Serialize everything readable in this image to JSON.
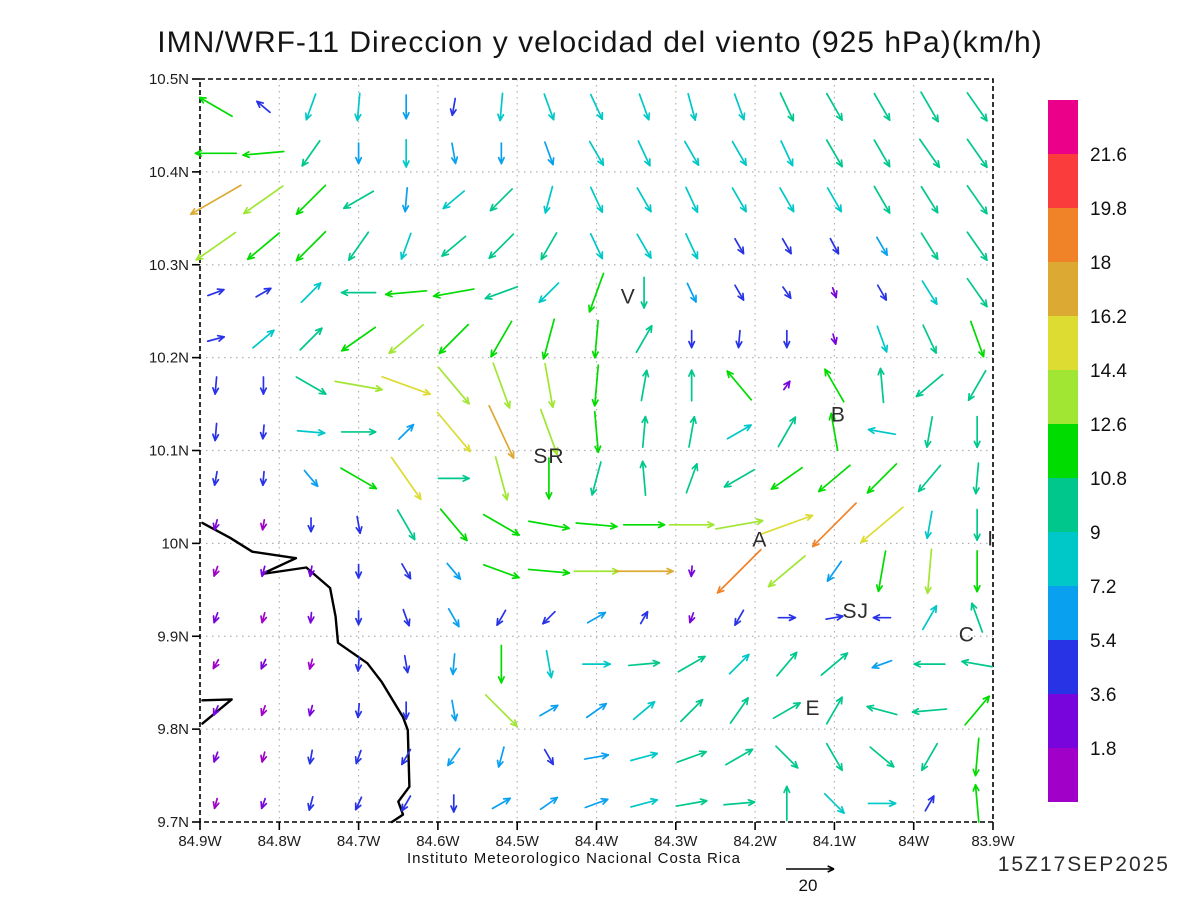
{
  "title": "IMN/WRF-11 Direccion y velocidad del viento (925 hPa)(km/h)",
  "footer": {
    "institute": "Instituto Meteorologico Nacional Costa Rica",
    "timestamp": "15Z17SEP2025",
    "reference_vector": {
      "label": "20",
      "speed_kmh": 20
    }
  },
  "axes": {
    "lat_ticks": [
      {
        "label": "10.5N",
        "value": 10.5
      },
      {
        "label": "10.4N",
        "value": 10.4
      },
      {
        "label": "10.3N",
        "value": 10.3
      },
      {
        "label": "10.2N",
        "value": 10.2
      },
      {
        "label": "10.1N",
        "value": 10.1
      },
      {
        "label": "10N",
        "value": 10.0
      },
      {
        "label": "9.9N",
        "value": 9.9
      },
      {
        "label": "9.8N",
        "value": 9.8
      },
      {
        "label": "9.7N",
        "value": 9.7
      }
    ],
    "lon_ticks": [
      {
        "label": "84.9W",
        "value": 84.9
      },
      {
        "label": "84.8W",
        "value": 84.8
      },
      {
        "label": "84.7W",
        "value": 84.7
      },
      {
        "label": "84.6W",
        "value": 84.6
      },
      {
        "label": "84.5W",
        "value": 84.5
      },
      {
        "label": "84.4W",
        "value": 84.4
      },
      {
        "label": "84.3W",
        "value": 84.3
      },
      {
        "label": "84.2W",
        "value": 84.2
      },
      {
        "label": "84.1W",
        "value": 84.1
      },
      {
        "label": "84W",
        "value": 84.0
      },
      {
        "label": "83.9W",
        "value": 83.9
      }
    ],
    "lat_range": [
      9.7,
      10.5
    ],
    "lon_range_west_to_east": [
      84.9,
      83.9
    ]
  },
  "colorbar": {
    "unit": "km/h",
    "tick_labels": [
      "1.8",
      "3.6",
      "5.4",
      "7.2",
      "9",
      "10.8",
      "12.6",
      "14.4",
      "16.2",
      "18",
      "19.8",
      "21.6"
    ],
    "levels": [
      1.8,
      3.6,
      5.4,
      7.2,
      9,
      10.8,
      12.6,
      14.4,
      16.2,
      18,
      19.8,
      21.6
    ],
    "colors_low_to_high": [
      "#A000C8",
      "#7805DC",
      "#2833E6",
      "#09A0F0",
      "#00C8C8",
      "#00C88C",
      "#00DC00",
      "#A0E632",
      "#DCDC32",
      "#DCAA32",
      "#F08228",
      "#FA3C3C",
      "#EB0089"
    ]
  },
  "city_labels": [
    {
      "text": "V",
      "lon": 84.36,
      "lat": 10.266
    },
    {
      "text": "SR",
      "lon": 84.46,
      "lat": 10.094
    },
    {
      "text": "B",
      "lon": 84.095,
      "lat": 10.139
    },
    {
      "text": "A",
      "lon": 84.194,
      "lat": 10.004
    },
    {
      "text": "SJ",
      "lon": 84.073,
      "lat": 9.927
    },
    {
      "text": "C",
      "lon": 83.933,
      "lat": 9.902
    },
    {
      "text": "E",
      "lon": 84.127,
      "lat": 9.823
    },
    {
      "text": "I",
      "lon": 83.903,
      "lat": 10.005
    }
  ],
  "coastline_lonlat": [
    [
      84.897,
      10.022
    ],
    [
      84.862,
      10.006
    ],
    [
      84.834,
      9.991
    ],
    [
      84.779,
      9.984
    ],
    [
      84.822,
      9.967
    ],
    [
      84.766,
      9.974
    ],
    [
      84.736,
      9.952
    ],
    [
      84.729,
      9.921
    ],
    [
      84.726,
      9.893
    ],
    [
      84.689,
      9.871
    ],
    [
      84.671,
      9.851
    ],
    [
      84.644,
      9.813
    ],
    [
      84.638,
      9.799
    ],
    [
      84.636,
      9.738
    ],
    [
      84.65,
      9.722
    ],
    [
      84.644,
      9.708
    ],
    [
      84.658,
      9.7
    ]
  ],
  "coastline2_lonlat": [
    [
      84.897,
      9.831
    ],
    [
      84.86,
      9.832
    ],
    [
      84.897,
      9.806
    ]
  ],
  "chart_data": {
    "type": "quiver",
    "units": "km/h",
    "direction_convention": "degrees clockwise from north; direction arrow points toward",
    "lon_points": [
      84.88,
      84.82,
      84.76,
      84.7,
      84.64,
      84.58,
      84.52,
      84.46,
      84.4,
      84.34,
      84.28,
      84.22,
      84.16,
      84.1,
      84.04,
      83.98,
      83.92
    ],
    "lat_points": [
      10.47,
      10.42,
      10.37,
      10.32,
      10.27,
      10.22,
      10.17,
      10.12,
      10.07,
      10.02,
      9.97,
      9.92,
      9.87,
      9.82,
      9.77,
      9.72
    ],
    "arrows_dir_speed": [
      [
        [
          300,
          11
        ],
        [
          310,
          5
        ],
        [
          200,
          8
        ],
        [
          185,
          8
        ],
        [
          180,
          7
        ],
        [
          190,
          5
        ],
        [
          185,
          8
        ],
        [
          160,
          8
        ],
        [
          155,
          8
        ],
        [
          160,
          8
        ],
        [
          165,
          8
        ],
        [
          160,
          8
        ],
        [
          155,
          9
        ],
        [
          150,
          9
        ],
        [
          150,
          9
        ],
        [
          150,
          10
        ],
        [
          145,
          10
        ]
      ],
      [
        [
          270,
          12
        ],
        [
          265,
          12
        ],
        [
          215,
          9
        ],
        [
          180,
          6
        ],
        [
          180,
          8
        ],
        [
          170,
          6
        ],
        [
          180,
          6
        ],
        [
          160,
          7
        ],
        [
          150,
          8
        ],
        [
          155,
          8
        ],
        [
          150,
          8
        ],
        [
          150,
          8
        ],
        [
          155,
          8
        ],
        [
          150,
          9
        ],
        [
          150,
          9
        ],
        [
          145,
          10
        ],
        [
          145,
          10
        ]
      ],
      [
        [
          240,
          17
        ],
        [
          235,
          14
        ],
        [
          225,
          12
        ],
        [
          240,
          10
        ],
        [
          185,
          7
        ],
        [
          230,
          8
        ],
        [
          225,
          9
        ],
        [
          195,
          8
        ],
        [
          155,
          8
        ],
        [
          150,
          8
        ],
        [
          155,
          8
        ],
        [
          150,
          8
        ],
        [
          150,
          8
        ],
        [
          150,
          8
        ],
        [
          150,
          9
        ],
        [
          148,
          9
        ],
        [
          145,
          10
        ]
      ],
      [
        [
          235,
          14
        ],
        [
          230,
          12
        ],
        [
          225,
          12
        ],
        [
          215,
          10
        ],
        [
          200,
          8
        ],
        [
          230,
          9
        ],
        [
          225,
          10
        ],
        [
          210,
          9
        ],
        [
          155,
          8
        ],
        [
          150,
          8
        ],
        [
          155,
          8
        ],
        [
          150,
          5
        ],
        [
          150,
          5
        ],
        [
          152,
          5
        ],
        [
          150,
          6
        ],
        [
          148,
          9
        ],
        [
          145,
          10
        ]
      ],
      [
        [
          70,
          5
        ],
        [
          60,
          5
        ],
        [
          45,
          8
        ],
        [
          270,
          10
        ],
        [
          265,
          12
        ],
        [
          260,
          12
        ],
        [
          250,
          10
        ],
        [
          225,
          8
        ],
        [
          200,
          12
        ],
        [
          180,
          9
        ],
        [
          155,
          6
        ],
        [
          150,
          5
        ],
        [
          145,
          4
        ],
        [
          160,
          3
        ],
        [
          150,
          5
        ],
        [
          148,
          8
        ],
        [
          145,
          10
        ]
      ],
      [
        [
          75,
          5
        ],
        [
          50,
          8
        ],
        [
          45,
          9
        ],
        [
          235,
          12
        ],
        [
          230,
          13
        ],
        [
          225,
          12
        ],
        [
          210,
          12
        ],
        [
          195,
          12
        ],
        [
          185,
          11
        ],
        [
          30,
          9
        ],
        [
          180,
          5
        ],
        [
          185,
          5
        ],
        [
          180,
          5
        ],
        [
          165,
          3
        ],
        [
          160,
          8
        ],
        [
          155,
          9
        ],
        [
          160,
          11
        ]
      ],
      [
        [
          185,
          5
        ],
        [
          180,
          5
        ],
        [
          120,
          10
        ],
        [
          100,
          14
        ],
        [
          110,
          15
        ],
        [
          140,
          14
        ],
        [
          160,
          14
        ],
        [
          170,
          13
        ],
        [
          185,
          12
        ],
        [
          10,
          9
        ],
        [
          0,
          9
        ],
        [
          320,
          11
        ],
        [
          35,
          3
        ],
        [
          330,
          11
        ],
        [
          355,
          10
        ],
        [
          230,
          10
        ],
        [
          210,
          10
        ]
      ],
      [
        [
          185,
          5
        ],
        [
          185,
          4
        ],
        [
          95,
          8
        ],
        [
          90,
          10
        ],
        [
          45,
          6
        ],
        [
          140,
          15
        ],
        [
          155,
          17
        ],
        [
          160,
          14
        ],
        [
          175,
          12
        ],
        [
          5,
          9
        ],
        [
          10,
          9
        ],
        [
          60,
          8
        ],
        [
          30,
          10
        ],
        [
          350,
          11
        ],
        [
          280,
          8
        ],
        [
          190,
          9
        ],
        [
          180,
          9
        ]
      ],
      [
        [
          190,
          4
        ],
        [
          185,
          4
        ],
        [
          140,
          6
        ],
        [
          120,
          12
        ],
        [
          145,
          15
        ],
        [
          90,
          9
        ],
        [
          165,
          13
        ],
        [
          180,
          12
        ],
        [
          195,
          10
        ],
        [
          355,
          10
        ],
        [
          20,
          9
        ],
        [
          240,
          10
        ],
        [
          235,
          11
        ],
        [
          230,
          12
        ],
        [
          225,
          12
        ],
        [
          220,
          10
        ],
        [
          185,
          9
        ]
      ],
      [
        [
          195,
          3
        ],
        [
          190,
          1.5
        ],
        [
          180,
          4
        ],
        [
          170,
          5
        ],
        [
          150,
          10
        ],
        [
          140,
          12
        ],
        [
          120,
          12
        ],
        [
          100,
          12
        ],
        [
          95,
          12
        ],
        [
          90,
          12
        ],
        [
          90,
          13
        ],
        [
          80,
          14
        ],
        [
          70,
          16
        ],
        [
          225,
          18
        ],
        [
          230,
          16
        ],
        [
          190,
          8
        ],
        [
          180,
          9
        ]
      ],
      [
        [
          200,
          1.5
        ],
        [
          195,
          3
        ],
        [
          190,
          3
        ],
        [
          180,
          4
        ],
        [
          150,
          5
        ],
        [
          140,
          6
        ],
        [
          110,
          11
        ],
        [
          95,
          12
        ],
        [
          90,
          13
        ],
        [
          90,
          17
        ],
        [
          185,
          3
        ],
        [
          225,
          18
        ],
        [
          230,
          14
        ],
        [
          215,
          7
        ],
        [
          190,
          12
        ],
        [
          185,
          13
        ],
        [
          180,
          12
        ]
      ],
      [
        [
          200,
          3
        ],
        [
          195,
          1.5
        ],
        [
          185,
          3
        ],
        [
          180,
          4
        ],
        [
          160,
          5
        ],
        [
          150,
          6
        ],
        [
          210,
          5
        ],
        [
          225,
          5
        ],
        [
          60,
          6
        ],
        [
          30,
          4
        ],
        [
          200,
          3
        ],
        [
          210,
          5
        ],
        [
          90,
          5
        ],
        [
          80,
          5
        ],
        [
          270,
          5
        ],
        [
          30,
          8
        ],
        [
          340,
          9
        ]
      ],
      [
        [
          210,
          1.5
        ],
        [
          205,
          3
        ],
        [
          195,
          1.5
        ],
        [
          185,
          4
        ],
        [
          170,
          5
        ],
        [
          185,
          6
        ],
        [
          180,
          11
        ],
        [
          170,
          8
        ],
        [
          90,
          8
        ],
        [
          85,
          9
        ],
        [
          60,
          9
        ],
        [
          45,
          8
        ],
        [
          40,
          9
        ],
        [
          50,
          10
        ],
        [
          250,
          6
        ],
        [
          270,
          9
        ],
        [
          280,
          9
        ]
      ],
      [
        [
          205,
          3
        ],
        [
          200,
          1.5
        ],
        [
          195,
          3
        ],
        [
          185,
          4
        ],
        [
          180,
          5
        ],
        [
          170,
          6
        ],
        [
          135,
          13
        ],
        [
          60,
          6
        ],
        [
          55,
          7
        ],
        [
          50,
          8
        ],
        [
          45,
          9
        ],
        [
          35,
          9
        ],
        [
          60,
          9
        ],
        [
          30,
          9
        ],
        [
          285,
          9
        ],
        [
          265,
          10
        ],
        [
          40,
          11
        ]
      ],
      [
        [
          200,
          3
        ],
        [
          195,
          1.5
        ],
        [
          190,
          4
        ],
        [
          200,
          4
        ],
        [
          210,
          5
        ],
        [
          215,
          6
        ],
        [
          195,
          6
        ],
        [
          150,
          5
        ],
        [
          80,
          7
        ],
        [
          75,
          8
        ],
        [
          70,
          9
        ],
        [
          60,
          9
        ],
        [
          135,
          9
        ],
        [
          150,
          9
        ],
        [
          130,
          9
        ],
        [
          210,
          9
        ],
        [
          185,
          11
        ]
      ],
      [
        [
          195,
          1.5
        ],
        [
          200,
          3
        ],
        [
          195,
          4
        ],
        [
          205,
          4
        ],
        [
          210,
          5
        ],
        [
          180,
          5
        ],
        [
          60,
          6
        ],
        [
          55,
          6
        ],
        [
          70,
          7
        ],
        [
          75,
          8
        ],
        [
          80,
          9
        ],
        [
          85,
          9
        ],
        [
          0,
          10
        ],
        [
          135,
          8
        ],
        [
          90,
          8
        ],
        [
          30,
          5
        ],
        [
          355,
          11
        ]
      ]
    ]
  }
}
